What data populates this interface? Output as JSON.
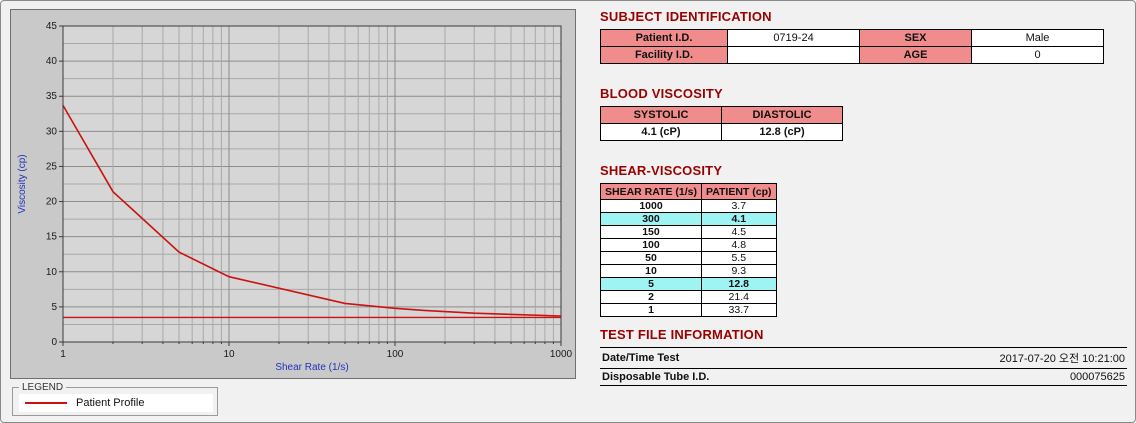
{
  "legend": {
    "title": "LEGEND",
    "series": [
      "Patient Profile"
    ]
  },
  "subject_identification": {
    "title": "SUBJECT IDENTIFICATION",
    "rows": [
      {
        "label1": "Patient I.D.",
        "value1": "0719-24",
        "label2": "SEX",
        "value2": "Male"
      },
      {
        "label1": "Facility I.D.",
        "value1": "",
        "label2": "AGE",
        "value2": "0"
      }
    ]
  },
  "blood_viscosity": {
    "title": "BLOOD VISCOSITY",
    "headers": [
      "SYSTOLIC",
      "DIASTOLIC"
    ],
    "values": [
      "4.1 (cP)",
      "12.8 (cP)"
    ]
  },
  "shear_viscosity": {
    "title": "SHEAR-VISCOSITY",
    "headers": [
      "SHEAR RATE (1/s)",
      "PATIENT (cp)"
    ],
    "rows": [
      {
        "rate": "1000",
        "patient": "3.7"
      },
      {
        "rate": "300",
        "patient": "4.1"
      },
      {
        "rate": "150",
        "patient": "4.5"
      },
      {
        "rate": "100",
        "patient": "4.8"
      },
      {
        "rate": "50",
        "patient": "5.5"
      },
      {
        "rate": "10",
        "patient": "9.3"
      },
      {
        "rate": "5",
        "patient": "12.8"
      },
      {
        "rate": "2",
        "patient": "21.4"
      },
      {
        "rate": "1",
        "patient": "33.7"
      }
    ]
  },
  "test_file_information": {
    "title": "TEST FILE INFORMATION",
    "rows": [
      {
        "label": "Date/Time Test",
        "value": "2017-07-20 오전 10:21:00"
      },
      {
        "label": "Disposable Tube I.D.",
        "value": "000075625"
      }
    ]
  },
  "colors": {
    "section_title": "#990000",
    "table_header_pink": "#f08c8c",
    "highlight_cyan": "#9ef3f3",
    "series_red": "#cc1111",
    "plot_bg": "#d6d6d6",
    "grid_minor": "#a9a9a9",
    "grid_major": "#8c8c8c",
    "axis_title": "#2233bb"
  },
  "chart_data": {
    "type": "line",
    "title": "",
    "xlabel": "Shear Rate (1/s)",
    "ylabel": "Viscosity (cp)",
    "x_scale": "log",
    "xlim": [
      1,
      1000
    ],
    "ylim": [
      0,
      45
    ],
    "xticks": [
      1,
      10,
      100,
      1000
    ],
    "yticks": [
      0,
      5,
      10,
      15,
      20,
      25,
      30,
      35,
      40,
      45
    ],
    "grid": true,
    "legend_position": "bottom-left",
    "marker_line_y": 3.5,
    "series": [
      {
        "name": "Patient Profile",
        "color": "#cc1111",
        "x": [
          1,
          2,
          5,
          10,
          50,
          100,
          150,
          300,
          1000
        ],
        "y": [
          33.7,
          21.4,
          12.8,
          9.3,
          5.5,
          4.8,
          4.5,
          4.1,
          3.7
        ]
      }
    ]
  }
}
